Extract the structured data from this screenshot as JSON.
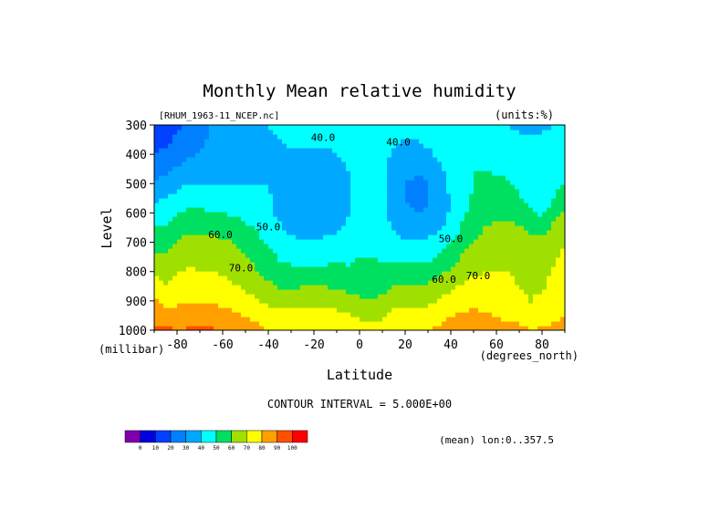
{
  "chart_data": {
    "type": "heatmap",
    "subtype": "filled-contour",
    "title": "Monthly Mean relative humidity",
    "file_label": "[RHUM_1963-11_NCEP.nc]",
    "units_label": "(units:%)",
    "xlabel": "Latitude",
    "x_units_label": "(degrees_north)",
    "ylabel": "Level",
    "y_units_label": "(millibar)",
    "contour_interval_label": "CONTOUR INTERVAL = 5.000E+00",
    "footer_label": "(mean) lon:0..357.5",
    "xlim": [
      -90,
      90
    ],
    "ylim": [
      1000,
      300
    ],
    "x_ticks": [
      -80,
      -60,
      -40,
      -20,
      0,
      20,
      40,
      60,
      80
    ],
    "x_tick_labels": [
      "-80",
      "-60",
      "-40",
      "-20",
      "0",
      "20",
      "40",
      "60",
      "80"
    ],
    "y_ticks": [
      300,
      400,
      500,
      600,
      700,
      800,
      900,
      1000
    ],
    "y_tick_labels": [
      "300",
      "400",
      "500",
      "600",
      "700",
      "800",
      "900",
      "1000"
    ],
    "contour_labels": [
      {
        "text": "40.0",
        "x": -16,
        "y": 355
      },
      {
        "text": "40.0",
        "x": 17,
        "y": 370
      },
      {
        "text": "50.0",
        "x": -40,
        "y": 660
      },
      {
        "text": "50.0",
        "x": 40,
        "y": 700
      },
      {
        "text": "60.0",
        "x": -61,
        "y": 685
      },
      {
        "text": "60.0",
        "x": 37,
        "y": 838
      },
      {
        "text": "70.0",
        "x": -52,
        "y": 800
      },
      {
        "text": "70.0",
        "x": 52,
        "y": 825
      }
    ],
    "x": [
      -90,
      -85,
      -80,
      -75,
      -70,
      -65,
      -60,
      -55,
      -50,
      -45,
      -40,
      -35,
      -30,
      -25,
      -20,
      -15,
      -10,
      -5,
      0,
      5,
      10,
      15,
      20,
      25,
      30,
      35,
      40,
      45,
      50,
      55,
      60,
      65,
      70,
      75,
      80,
      85,
      90
    ],
    "y": [
      1000,
      950,
      900,
      850,
      800,
      750,
      700,
      650,
      600,
      550,
      500,
      450,
      400,
      350,
      300
    ],
    "values": [
      [
        92,
        92,
        90,
        91,
        92,
        91,
        90,
        88,
        86,
        83,
        80,
        79,
        80,
        80,
        80,
        80,
        79,
        77,
        74,
        73,
        74,
        78,
        79,
        79,
        80,
        82,
        84,
        86,
        87,
        86,
        85,
        83,
        83,
        80,
        82,
        82,
        84
      ],
      [
        88,
        86,
        84,
        86,
        86,
        85,
        84,
        82,
        80,
        78,
        75,
        73,
        73,
        74,
        74,
        74,
        73,
        71,
        69,
        68,
        69,
        73,
        74,
        74,
        75,
        77,
        80,
        81,
        82,
        81,
        80,
        78,
        78,
        73,
        76,
        78,
        80
      ],
      [
        82,
        77,
        78,
        80,
        80,
        79,
        78,
        76,
        74,
        71,
        68,
        66,
        66,
        67,
        67,
        67,
        66,
        64,
        62,
        61,
        62,
        66,
        67,
        67,
        68,
        71,
        74,
        76,
        78,
        77,
        76,
        74,
        73,
        70,
        72,
        76,
        78
      ],
      [
        75,
        70,
        73,
        75,
        75,
        74,
        73,
        71,
        68,
        65,
        62,
        59,
        59,
        60,
        60,
        60,
        59,
        57,
        56,
        56,
        57,
        60,
        60,
        60,
        61,
        64,
        68,
        71,
        73,
        73,
        72,
        71,
        70,
        68,
        69,
        73,
        76
      ],
      [
        68,
        65,
        70,
        71,
        70,
        70,
        69,
        67,
        64,
        60,
        57,
        54,
        53,
        53,
        53,
        53,
        53,
        52,
        52,
        52,
        53,
        54,
        54,
        54,
        55,
        58,
        62,
        66,
        69,
        70,
        70,
        70,
        69,
        67,
        67,
        71,
        74
      ],
      [
        62,
        61,
        66,
        68,
        68,
        67,
        66,
        64,
        61,
        57,
        53,
        49,
        47,
        47,
        47,
        47,
        48,
        48,
        50,
        50,
        49,
        48,
        47,
        47,
        48,
        51,
        56,
        61,
        66,
        68,
        69,
        69,
        68,
        66,
        65,
        69,
        72
      ],
      [
        56,
        56,
        60,
        64,
        64,
        63,
        62,
        60,
        57,
        53,
        49,
        45,
        42,
        41,
        41,
        42,
        43,
        45,
        48,
        48,
        46,
        43,
        41,
        41,
        42,
        45,
        50,
        56,
        61,
        64,
        66,
        66,
        65,
        63,
        62,
        66,
        70
      ],
      [
        50,
        51,
        55,
        58,
        58,
        57,
        56,
        54,
        52,
        49,
        45,
        41,
        38,
        36,
        36,
        37,
        39,
        42,
        47,
        47,
        44,
        39,
        36,
        35,
        36,
        39,
        44,
        51,
        56,
        60,
        62,
        62,
        61,
        58,
        56,
        62,
        66
      ],
      [
        44,
        46,
        49,
        52,
        52,
        51,
        50,
        49,
        47,
        45,
        42,
        38,
        34,
        33,
        32,
        33,
        35,
        39,
        46,
        46,
        42,
        36,
        32,
        30,
        31,
        35,
        41,
        48,
        53,
        57,
        58,
        58,
        56,
        52,
        48,
        56,
        62
      ],
      [
        38,
        40,
        43,
        46,
        46,
        45,
        45,
        44,
        43,
        42,
        41,
        37,
        33,
        32,
        31,
        32,
        34,
        38,
        45,
        46,
        42,
        35,
        30,
        28,
        29,
        34,
        41,
        47,
        51,
        54,
        55,
        54,
        51,
        47,
        44,
        50,
        56
      ],
      [
        32,
        34,
        37,
        40,
        40,
        40,
        40,
        40,
        40,
        40,
        40,
        37,
        34,
        33,
        32,
        33,
        35,
        39,
        44,
        45,
        42,
        36,
        30,
        28,
        29,
        35,
        42,
        47,
        50,
        52,
        52,
        51,
        48,
        45,
        42,
        47,
        51
      ],
      [
        25,
        28,
        31,
        34,
        35,
        36,
        37,
        37,
        38,
        39,
        39,
        38,
        37,
        36,
        35,
        36,
        37,
        40,
        44,
        44,
        42,
        37,
        33,
        31,
        33,
        38,
        44,
        48,
        50,
        50,
        49,
        48,
        46,
        44,
        42,
        45,
        48
      ],
      [
        20,
        22,
        26,
        29,
        31,
        33,
        35,
        36,
        37,
        38,
        39,
        39,
        39,
        39,
        39,
        39,
        40,
        42,
        44,
        44,
        42,
        39,
        37,
        36,
        38,
        42,
        46,
        48,
        48,
        47,
        46,
        45,
        44,
        43,
        42,
        44,
        46
      ],
      [
        16,
        18,
        22,
        25,
        28,
        31,
        34,
        36,
        37,
        38,
        39,
        40,
        41,
        41,
        41,
        41,
        42,
        43,
        45,
        45,
        43,
        41,
        40,
        40,
        42,
        45,
        47,
        48,
        47,
        45,
        43,
        42,
        41,
        41,
        41,
        42,
        44
      ],
      [
        12,
        14,
        18,
        22,
        26,
        30,
        34,
        36,
        38,
        39,
        40,
        41,
        42,
        42,
        42,
        42,
        42,
        43,
        44,
        44,
        43,
        42,
        42,
        42,
        43,
        45,
        46,
        46,
        45,
        43,
        41,
        40,
        39,
        39,
        39,
        40,
        42
      ]
    ],
    "colorbar": {
      "ticks": [
        0,
        10,
        20,
        30,
        40,
        50,
        60,
        70,
        80,
        90,
        100
      ],
      "tick_labels": [
        "0",
        "10",
        "20",
        "30",
        "40",
        "50",
        "60",
        "70",
        "80",
        "90",
        "100"
      ],
      "bins": [
        0,
        10,
        20,
        30,
        40,
        50,
        60,
        70,
        80,
        90,
        100
      ],
      "colors": [
        "#8000b0",
        "#0000e0",
        "#0040ff",
        "#0080ff",
        "#00a8ff",
        "#00ffff",
        "#00e060",
        "#a0e000",
        "#ffff00",
        "#ffa000",
        "#ff5000",
        "#ff0000"
      ]
    }
  }
}
